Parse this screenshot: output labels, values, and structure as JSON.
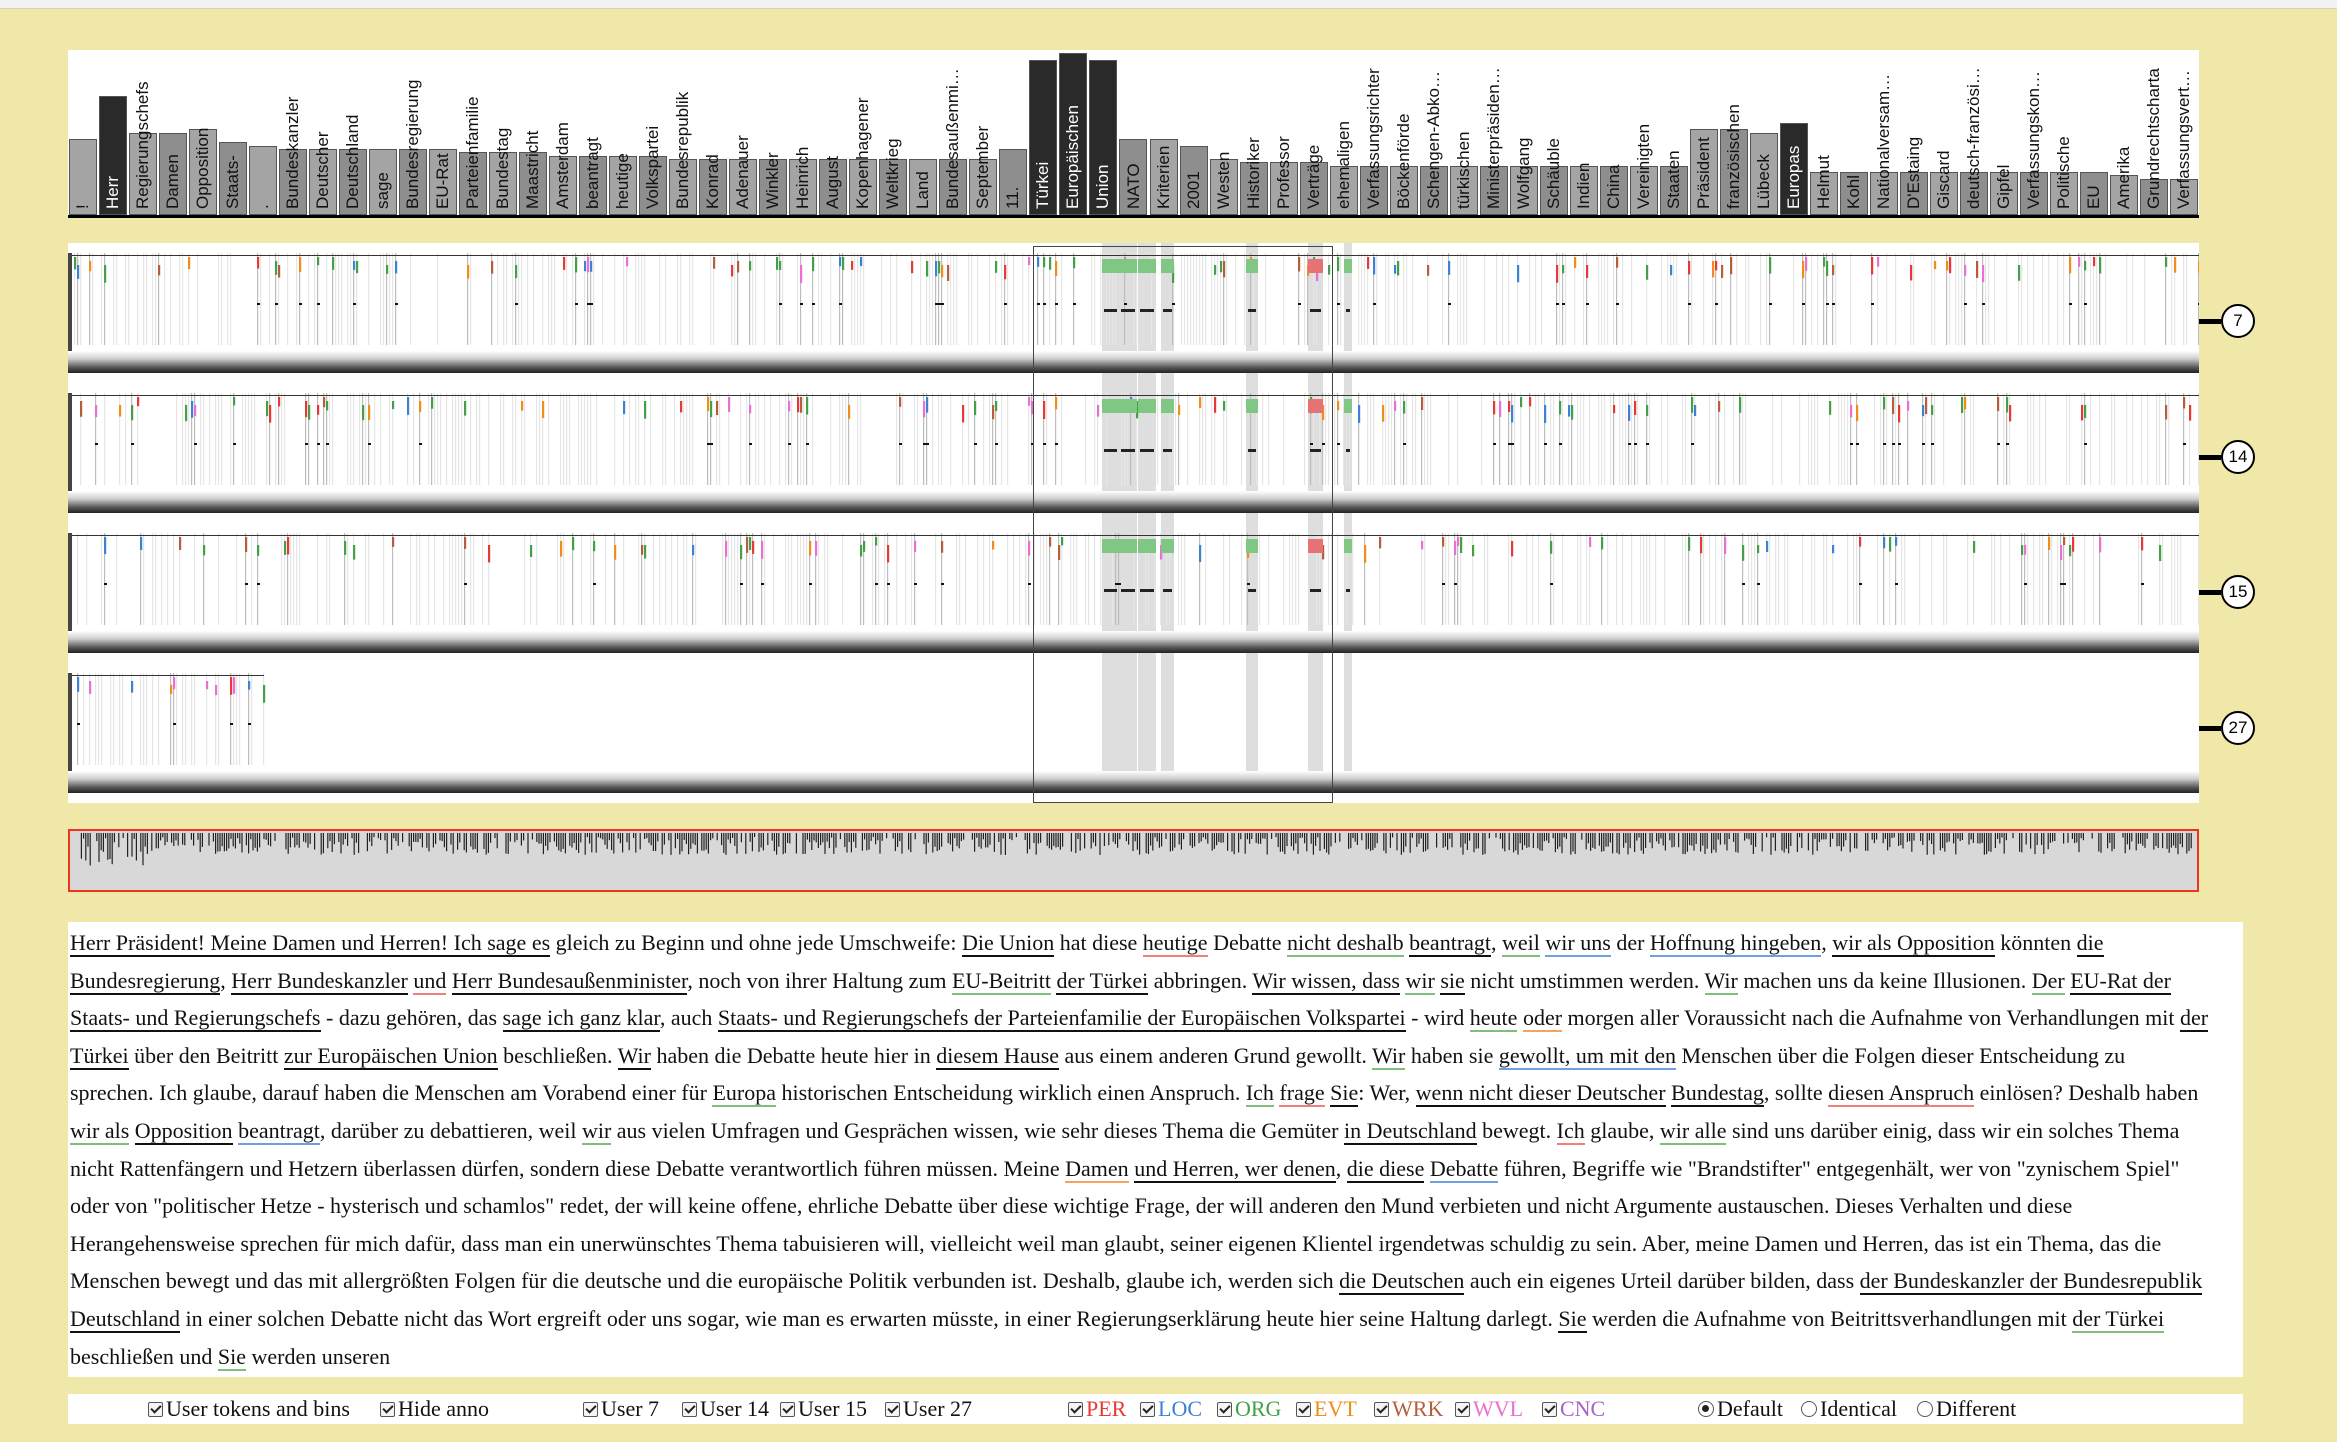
{
  "keywords": [
    {
      "label": "!",
      "h": 0.46,
      "dark": false
    },
    {
      "label": "Herr",
      "h": 0.72,
      "dark": true
    },
    {
      "label": "Regierungschefs",
      "h": 0.5,
      "dark": false
    },
    {
      "label": "Damen",
      "h": 0.5,
      "dark": false
    },
    {
      "label": "Opposition",
      "h": 0.52,
      "dark": false
    },
    {
      "label": "Staats-",
      "h": 0.44,
      "dark": false
    },
    {
      "label": ".",
      "h": 0.42,
      "dark": false
    },
    {
      "label": "Bundeskanzler",
      "h": 0.4,
      "dark": false
    },
    {
      "label": "Deutscher",
      "h": 0.4,
      "dark": false
    },
    {
      "label": "Deutschland",
      "h": 0.4,
      "dark": false
    },
    {
      "label": "sage",
      "h": 0.4,
      "dark": false
    },
    {
      "label": "Bundesregierung",
      "h": 0.4,
      "dark": false
    },
    {
      "label": "EU-Rat",
      "h": 0.4,
      "dark": false
    },
    {
      "label": "Parteienfamilie",
      "h": 0.38,
      "dark": false
    },
    {
      "label": "Bundestag",
      "h": 0.38,
      "dark": false
    },
    {
      "label": "Maastricht",
      "h": 0.38,
      "dark": false
    },
    {
      "label": "Amsterdam",
      "h": 0.36,
      "dark": false
    },
    {
      "label": "beantragt",
      "h": 0.36,
      "dark": false
    },
    {
      "label": "heutige",
      "h": 0.36,
      "dark": false
    },
    {
      "label": "Volkspartei",
      "h": 0.36,
      "dark": false
    },
    {
      "label": "Bundesrepublik",
      "h": 0.34,
      "dark": false
    },
    {
      "label": "Konrad",
      "h": 0.34,
      "dark": false
    },
    {
      "label": "Adenauer",
      "h": 0.34,
      "dark": false
    },
    {
      "label": "Winkler",
      "h": 0.34,
      "dark": false
    },
    {
      "label": "Heinrich",
      "h": 0.34,
      "dark": false
    },
    {
      "label": "August",
      "h": 0.34,
      "dark": false
    },
    {
      "label": "Kopenhagener",
      "h": 0.34,
      "dark": false
    },
    {
      "label": "Weltkrieg",
      "h": 0.34,
      "dark": false
    },
    {
      "label": "Land",
      "h": 0.34,
      "dark": false
    },
    {
      "label": "Bundesaußenmi…",
      "h": 0.34,
      "dark": false
    },
    {
      "label": "September",
      "h": 0.34,
      "dark": false
    },
    {
      "label": "11.",
      "h": 0.4,
      "dark": false
    },
    {
      "label": "Türkei",
      "h": 0.94,
      "dark": true
    },
    {
      "label": "Europäischen",
      "h": 0.98,
      "dark": true
    },
    {
      "label": "Union",
      "h": 0.94,
      "dark": true
    },
    {
      "label": "NATO",
      "h": 0.46,
      "dark": false
    },
    {
      "label": "Kriterien",
      "h": 0.46,
      "dark": false
    },
    {
      "label": "2001",
      "h": 0.42,
      "dark": false
    },
    {
      "label": "Westen",
      "h": 0.34,
      "dark": false
    },
    {
      "label": "Historiker",
      "h": 0.32,
      "dark": false
    },
    {
      "label": "Professor",
      "h": 0.32,
      "dark": false
    },
    {
      "label": "Verträge",
      "h": 0.32,
      "dark": false
    },
    {
      "label": "ehemaligen",
      "h": 0.3,
      "dark": false
    },
    {
      "label": "Verfassungsrichter",
      "h": 0.3,
      "dark": false
    },
    {
      "label": "Böckenförde",
      "h": 0.3,
      "dark": false
    },
    {
      "label": "Schengen-Abko…",
      "h": 0.3,
      "dark": false
    },
    {
      "label": "türkischen",
      "h": 0.3,
      "dark": false
    },
    {
      "label": "Ministerpräsiden…",
      "h": 0.3,
      "dark": false
    },
    {
      "label": "Wolfgang",
      "h": 0.3,
      "dark": false
    },
    {
      "label": "Schäuble",
      "h": 0.3,
      "dark": false
    },
    {
      "label": "Indien",
      "h": 0.3,
      "dark": false
    },
    {
      "label": "China",
      "h": 0.3,
      "dark": false
    },
    {
      "label": "Vereinigten",
      "h": 0.3,
      "dark": false
    },
    {
      "label": "Staaten",
      "h": 0.3,
      "dark": false
    },
    {
      "label": "Präsident",
      "h": 0.52,
      "dark": false
    },
    {
      "label": "französischen",
      "h": 0.52,
      "dark": false
    },
    {
      "label": "Lübeck",
      "h": 0.5,
      "dark": false
    },
    {
      "label": "Europas",
      "h": 0.56,
      "dark": true
    },
    {
      "label": "Helmut",
      "h": 0.26,
      "dark": false
    },
    {
      "label": "Kohl",
      "h": 0.26,
      "dark": false
    },
    {
      "label": "Nationalversam…",
      "h": 0.26,
      "dark": false
    },
    {
      "label": "D'Estaing",
      "h": 0.26,
      "dark": false
    },
    {
      "label": "Giscard",
      "h": 0.26,
      "dark": false
    },
    {
      "label": "deutsch-französi…",
      "h": 0.26,
      "dark": false
    },
    {
      "label": "Gipfel",
      "h": 0.26,
      "dark": false
    },
    {
      "label": "Verfassungskon…",
      "h": 0.26,
      "dark": false
    },
    {
      "label": "Politische",
      "h": 0.26,
      "dark": false
    },
    {
      "label": "EU",
      "h": 0.26,
      "dark": false
    },
    {
      "label": "Amerika",
      "h": 0.24,
      "dark": false
    },
    {
      "label": "Grundrechtscharta",
      "h": 0.22,
      "dark": false
    },
    {
      "label": "Verfassungsvert…",
      "h": 0.22,
      "dark": false
    }
  ],
  "lanes": [
    {
      "badge": "7",
      "extent": 1.0
    },
    {
      "badge": "14",
      "extent": 1.0
    },
    {
      "badge": "15",
      "extent": 1.0
    },
    {
      "badge": "27",
      "extent": 0.092
    }
  ],
  "tokens": [
    {
      "t": "Herr Präsident! Meine Damen und Herren! Ich sage es",
      "u": 1
    },
    {
      "t": " gleich zu Beginn und ohne jede Umschweife: ",
      "u": 0
    },
    {
      "t": "Die Union",
      "u": 1
    },
    {
      "t": " hat diese ",
      "u": 0
    },
    {
      "t": "heutige",
      "u": 4
    },
    {
      "t": " Debatte ",
      "u": 0
    },
    {
      "t": "nicht deshalb",
      "u": 2
    },
    {
      "t": " ",
      "u": 0
    },
    {
      "t": "beantragt",
      "u": 1
    },
    {
      "t": ", ",
      "u": 0
    },
    {
      "t": "weil",
      "u": 2
    },
    {
      "t": " ",
      "u": 0
    },
    {
      "t": "wir uns",
      "u": 3
    },
    {
      "t": " der ",
      "u": 0
    },
    {
      "t": "Hoffnung hingeben",
      "u": 3
    },
    {
      "t": ", ",
      "u": 0
    },
    {
      "t": "wir als Opposition",
      "u": 1
    },
    {
      "t": " könnten ",
      "u": 0
    },
    {
      "t": "die Bundesregierung",
      "u": 1
    },
    {
      "t": ", ",
      "u": 0
    },
    {
      "t": "Herr Bundeskanzler",
      "u": 1
    },
    {
      "t": " ",
      "u": 0
    },
    {
      "t": "und",
      "u": 4
    },
    {
      "t": " ",
      "u": 0
    },
    {
      "t": "Herr Bundesaußenminister",
      "u": 1
    },
    {
      "t": ", noch von ihrer Haltung zum ",
      "u": 0
    },
    {
      "t": "EU-Beitritt",
      "u": 2
    },
    {
      "t": " ",
      "u": 0
    },
    {
      "t": "der Türkei",
      "u": 1
    },
    {
      "t": " abbringen. ",
      "u": 0
    },
    {
      "t": "Wir wissen, dass",
      "u": 1
    },
    {
      "t": " ",
      "u": 0
    },
    {
      "t": "wir",
      "u": 2
    },
    {
      "t": " ",
      "u": 0
    },
    {
      "t": "sie",
      "u": 1
    },
    {
      "t": " nicht umstimmen werden. ",
      "u": 0
    },
    {
      "t": "Wir",
      "u": 2
    },
    {
      "t": " machen uns da keine Illusionen. ",
      "u": 0
    },
    {
      "t": "Der",
      "u": 2
    },
    {
      "t": " ",
      "u": 0
    },
    {
      "t": "EU-Rat der Staats- und Regierungschefs",
      "u": 1
    },
    {
      "t": " - dazu gehören, das ",
      "u": 0
    },
    {
      "t": "sage ich ganz klar",
      "u": 1
    },
    {
      "t": ", auch ",
      "u": 0
    },
    {
      "t": "Staats- und Regierungschefs der Parteienfamilie der Europäischen Volkspartei",
      "u": 1
    },
    {
      "t": " - wird ",
      "u": 0
    },
    {
      "t": "heute",
      "u": 2
    },
    {
      "t": " ",
      "u": 0
    },
    {
      "t": "oder",
      "u": 5
    },
    {
      "t": " morgen aller Voraussicht nach die Aufnahme von Verhandlungen mit ",
      "u": 0
    },
    {
      "t": "der Türkei",
      "u": 1
    },
    {
      "t": " über den Beitritt ",
      "u": 0
    },
    {
      "t": "zur Europäischen Union",
      "u": 1
    },
    {
      "t": " beschließen. ",
      "u": 0
    },
    {
      "t": "Wir",
      "u": 1
    },
    {
      "t": " haben die Debatte heute hier in ",
      "u": 0
    },
    {
      "t": "diesem Hause",
      "u": 1
    },
    {
      "t": " aus einem anderen Grund gewollt. ",
      "u": 0
    },
    {
      "t": "Wir",
      "u": 2
    },
    {
      "t": " haben sie ",
      "u": 0
    },
    {
      "t": "gewollt, um mit den",
      "u": 3
    },
    {
      "t": " Menschen über die Folgen dieser Entscheidung zu sprechen. Ich glaube, darauf haben die Menschen am Vorabend einer für ",
      "u": 0
    },
    {
      "t": "Europa",
      "u": 2
    },
    {
      "t": " historischen Entscheidung wirklich einen Anspruch. ",
      "u": 0
    },
    {
      "t": "Ich",
      "u": 2
    },
    {
      "t": " ",
      "u": 0
    },
    {
      "t": "frage",
      "u": 4
    },
    {
      "t": " ",
      "u": 0
    },
    {
      "t": "Sie",
      "u": 1
    },
    {
      "t": ": Wer, ",
      "u": 0
    },
    {
      "t": "wenn nicht dieser Deutscher",
      "u": 1
    },
    {
      "t": " ",
      "u": 0
    },
    {
      "t": "Bundestag",
      "u": 1
    },
    {
      "t": ", sollte ",
      "u": 0
    },
    {
      "t": "diesen Anspruch",
      "u": 4
    },
    {
      "t": " einlösen? Deshalb haben ",
      "u": 0
    },
    {
      "t": "wir als",
      "u": 2
    },
    {
      "t": " ",
      "u": 0
    },
    {
      "t": "Opposition",
      "u": 1
    },
    {
      "t": " ",
      "u": 0
    },
    {
      "t": "beantragt",
      "u": 3
    },
    {
      "t": ", darüber zu debattieren, weil ",
      "u": 0
    },
    {
      "t": "wir",
      "u": 2
    },
    {
      "t": " aus vielen Umfragen und Gesprächen wissen, wie sehr dieses Thema die Gemüter ",
      "u": 0
    },
    {
      "t": "in Deutschland",
      "u": 1
    },
    {
      "t": " bewegt. ",
      "u": 0
    },
    {
      "t": "Ich",
      "u": 4
    },
    {
      "t": " glaube, ",
      "u": 0
    },
    {
      "t": "wir alle",
      "u": 2
    },
    {
      "t": " sind uns darüber einig, dass wir ein solches Thema nicht Rattenfängern und Hetzern überlassen dürfen, sondern diese Debatte verantwortlich führen müssen. Meine ",
      "u": 0
    },
    {
      "t": "Damen",
      "u": 5
    },
    {
      "t": " ",
      "u": 0
    },
    {
      "t": "und Herren, wer denen",
      "u": 1
    },
    {
      "t": ", ",
      "u": 0
    },
    {
      "t": "die diese",
      "u": 1
    },
    {
      "t": " ",
      "u": 0
    },
    {
      "t": "Debatte",
      "u": 3
    },
    {
      "t": " führen, Begriffe wie \"Brandstifter\" entgegenhält, wer von \"zynischem Spiel\" oder von \"politischer Hetze - hysterisch und schamlos\" redet, der will keine offene, ehrliche Debatte über diese wichtige Frage, der will anderen den Mund verbieten und nicht Argumente austauschen. Dieses Verhalten und diese Herangehensweise sprechen für mich dafür, dass man ein unerwünschtes Thema tabuisieren will, vielleicht weil man glaubt, seiner eigenen Klientel irgendetwas schuldig zu sein. Aber, meine Damen und Herren, das ist ein Thema, das die Menschen bewegt und das mit allergrößten Folgen für die deutsche und die europäische Politik verbunden ist. Deshalb, glaube ich, werden sich ",
      "u": 0
    },
    {
      "t": "die Deutschen",
      "u": 1
    },
    {
      "t": " auch ein eigenes Urteil darüber bilden, dass ",
      "u": 0
    },
    {
      "t": "der Bundeskanzler der Bundesrepublik Deutschland",
      "u": 1
    },
    {
      "t": " in einer solchen Debatte nicht das Wort ergreift oder uns sogar, wie man es erwarten müsste, in einer Regierungserklärung heute hier seine Haltung darlegt. ",
      "u": 0
    },
    {
      "t": "Sie",
      "u": 1
    },
    {
      "t": " werden die Aufnahme von Beitrittsverhandlungen mit ",
      "u": 0
    },
    {
      "t": "der Türkei",
      "u": 2
    },
    {
      "t": " beschließen und ",
      "u": 0
    },
    {
      "t": "Sie",
      "u": 2
    },
    {
      "t": " werden unseren",
      "u": 0
    }
  ],
  "controls": {
    "user_tokens_label": "User tokens and bins",
    "hide_anno_label": "Hide anno",
    "user_7": "User 7",
    "user_14": "User 14",
    "user_15": "User 15",
    "user_27": "User 27",
    "per": "PER",
    "loc": "LOC",
    "org": "ORG",
    "evt": "EVT",
    "wrk": "WRK",
    "wvl": "WVL",
    "cnc": "CNC",
    "default": "Default",
    "identical": "Identical",
    "different": "Different"
  },
  "colors": {
    "background": "#efe8a8",
    "per": "#e53935",
    "loc": "#3b82d6",
    "org": "#43a047",
    "evt": "#ef8c1a",
    "wrk": "#b45f3c",
    "wvl": "#e96fd4",
    "cnc": "#a564c8",
    "selection": "#e33322"
  }
}
